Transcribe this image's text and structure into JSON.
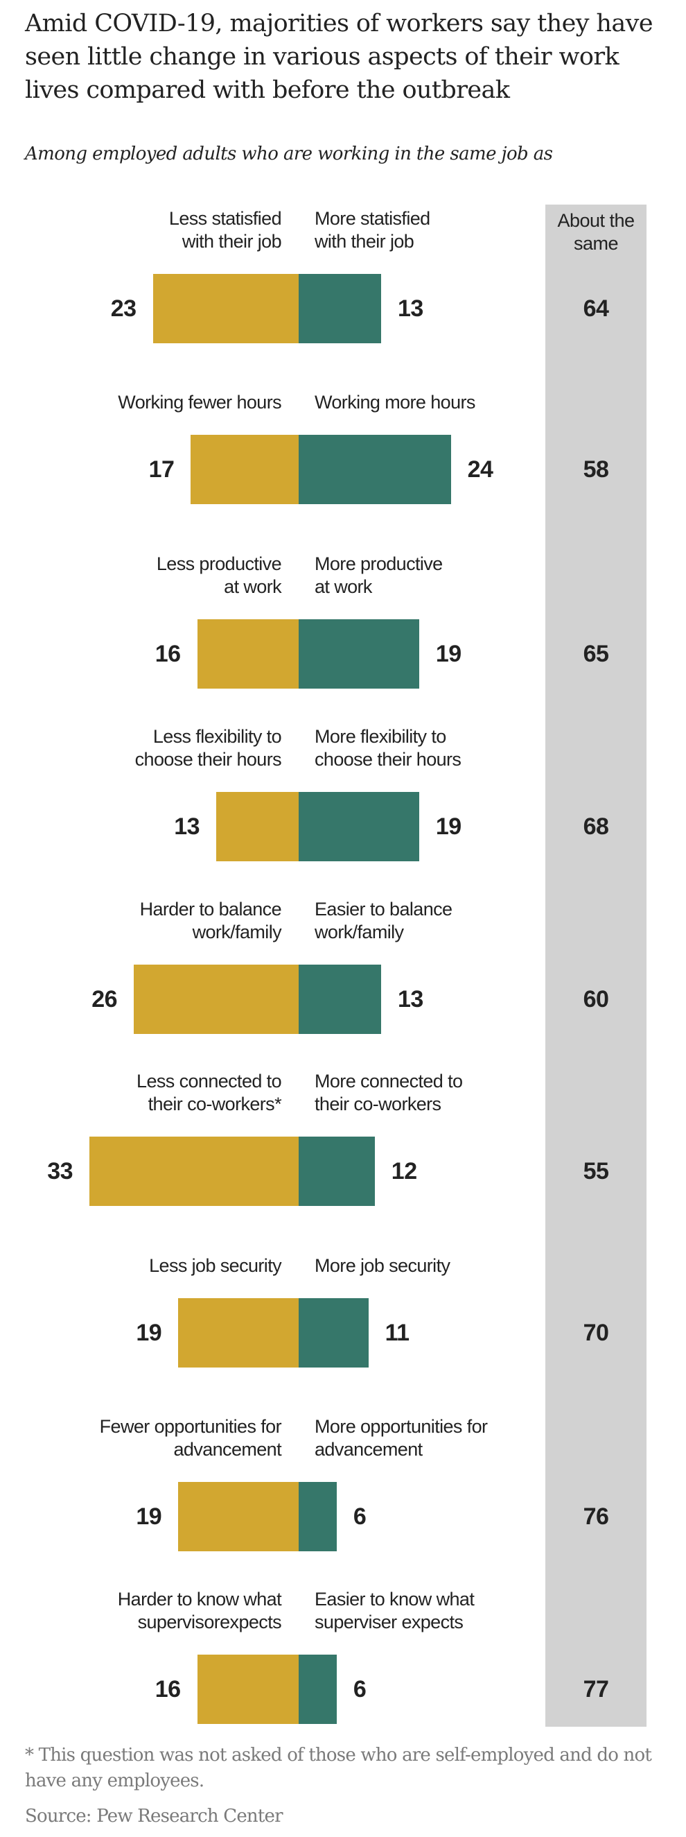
{
  "chart_data": {
    "type": "bar",
    "orientation": "horizontal-diverging",
    "title": "Amid COVID-19, majorities of workers say they have seen little change in various aspects of their work lives compared with before the outbreak",
    "subtitle": "Among employed adults who are working in the same job as",
    "same_header": "About the same",
    "colors": {
      "negative": "#d2a730",
      "positive": "#36776a",
      "same_bg": "#d2d2d2"
    },
    "rows": [
      {
        "left_label": "Less statisfied\nwith their job",
        "right_label": "More statisfied\nwith their job",
        "negative": 23,
        "positive": 13,
        "same": 64
      },
      {
        "left_label": "Working fewer hours",
        "right_label": "Working more hours",
        "negative": 17,
        "positive": 24,
        "same": 58
      },
      {
        "left_label": "Less productive\nat work",
        "right_label": "More productive\n at work",
        "negative": 16,
        "positive": 19,
        "same": 65
      },
      {
        "left_label": "Less flexibility to\nchoose their hours",
        "right_label": "More flexibility to\nchoose their hours",
        "negative": 13,
        "positive": 19,
        "same": 68
      },
      {
        "left_label": "Harder to balance\nwork/family",
        "right_label": "Easier to balance\nwork/family",
        "negative": 26,
        "positive": 13,
        "same": 60
      },
      {
        "left_label": "Less connected to\ntheir co-workers*",
        "right_label": "More connected to\ntheir co-workers",
        "negative": 33,
        "positive": 12,
        "same": 55
      },
      {
        "left_label": "Less job security",
        "right_label": "More job security",
        "negative": 19,
        "positive": 11,
        "same": 70
      },
      {
        "left_label": "Fewer opportunities for\nadvancement",
        "right_label": "More opportunities for\nadvancement",
        "negative": 19,
        "positive": 6,
        "same": 76
      },
      {
        "left_label": "Harder to know what\nsupervisorexpects",
        "right_label": "Easier to know what\nsuperviser expects",
        "negative": 16,
        "positive": 6,
        "same": 77
      }
    ],
    "note": "* This question was not asked of those who are self-employed and do not have any employees.",
    "source": "Source: Pew Research Center"
  }
}
